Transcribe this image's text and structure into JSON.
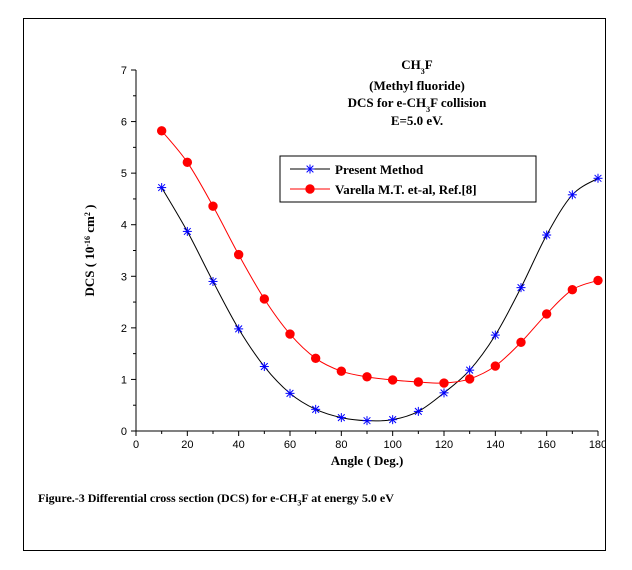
{
  "chart_data": {
    "type": "line",
    "title_lines": [
      "CH3F",
      "(Methyl fluoride)",
      "DCS for e-CH3F collision",
      "E=5.0 eV."
    ],
    "xlabel": "Angle ( Deg.)",
    "ylabel": "DCS ( 10-16 cm2 )",
    "xlim": [
      0,
      180
    ],
    "ylim": [
      0,
      7
    ],
    "xticks": [
      0,
      20,
      40,
      60,
      80,
      100,
      120,
      140,
      160,
      180
    ],
    "yticks": [
      0,
      1,
      2,
      3,
      4,
      5,
      6,
      7
    ],
    "grid": false,
    "legend_position": "top-right",
    "series": [
      {
        "name": "Present Method",
        "color": "#0000ff",
        "marker": "asterisk",
        "x": [
          10,
          20,
          30,
          40,
          50,
          60,
          70,
          80,
          90,
          100,
          110,
          120,
          130,
          140,
          150,
          160,
          170,
          180
        ],
        "y": [
          4.72,
          3.87,
          2.9,
          1.98,
          1.25,
          0.73,
          0.42,
          0.26,
          0.2,
          0.22,
          0.38,
          0.74,
          1.18,
          1.86,
          2.78,
          3.8,
          4.58,
          4.9
        ]
      },
      {
        "name": "Varella M.T. et-al, Ref.[8]",
        "color": "#ff0000",
        "marker": "circle",
        "x": [
          10,
          20,
          30,
          40,
          50,
          60,
          70,
          80,
          90,
          100,
          110,
          120,
          130,
          140,
          150,
          160,
          170,
          180
        ],
        "y": [
          5.82,
          5.21,
          4.36,
          3.42,
          2.56,
          1.88,
          1.41,
          1.16,
          1.05,
          0.99,
          0.95,
          0.93,
          1.01,
          1.26,
          1.72,
          2.27,
          2.74,
          2.92
        ]
      }
    ],
    "line_color": "#000000"
  },
  "caption": {
    "prefix": "Figure.-3 Differential cross section (DCS) for e-CH",
    "sub": "3",
    "suffix": "F at energy 5.0 eV"
  }
}
